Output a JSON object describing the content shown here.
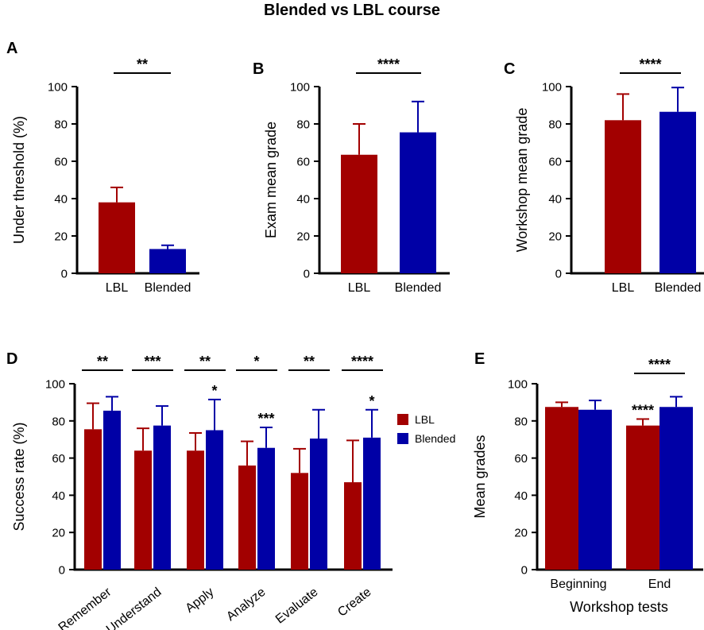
{
  "figure_title": "Blended vs LBL course",
  "colors": {
    "lbl": "#A20000",
    "blended": "#0000A6",
    "axis": "#000000"
  },
  "chart_data": [
    {
      "panel": "A",
      "type": "bar",
      "categories": [
        "LBL",
        "Blended"
      ],
      "values": [
        38,
        13
      ],
      "errors": [
        8,
        2
      ],
      "ylabel": "Under threshold (%)",
      "xlabel": "",
      "ylim": [
        0,
        100
      ],
      "yticks": [
        0,
        20,
        40,
        60,
        80,
        100
      ],
      "significance": [
        {
          "label": "**",
          "from": 0,
          "to": 1
        }
      ]
    },
    {
      "panel": "B",
      "type": "bar",
      "categories": [
        "LBL",
        "Blended"
      ],
      "values": [
        63.5,
        75.5
      ],
      "errors": [
        16.5,
        16.5
      ],
      "ylabel": "Exam mean grade",
      "xlabel": "",
      "ylim": [
        0,
        100
      ],
      "yticks": [
        0,
        20,
        40,
        60,
        80,
        100
      ],
      "significance": [
        {
          "label": "****",
          "from": 0,
          "to": 1
        }
      ]
    },
    {
      "panel": "C",
      "type": "bar",
      "categories": [
        "LBL",
        "Blended"
      ],
      "values": [
        82,
        86.5
      ],
      "errors": [
        14,
        13
      ],
      "ylabel": "Workshop mean grade",
      "xlabel": "",
      "ylim": [
        0,
        100
      ],
      "yticks": [
        0,
        20,
        40,
        60,
        80,
        100
      ],
      "significance": [
        {
          "label": "****",
          "from": 0,
          "to": 1
        }
      ]
    },
    {
      "panel": "D",
      "type": "bar",
      "categories": [
        "Remember",
        "Understand",
        "Apply",
        "Analyze",
        "Evaluate",
        "Create"
      ],
      "series": [
        {
          "name": "LBL",
          "values": [
            75.5,
            64,
            64,
            56,
            52,
            47
          ],
          "errors": [
            14,
            12,
            9.5,
            13,
            13,
            22.5
          ]
        },
        {
          "name": "Blended",
          "values": [
            85.5,
            77.5,
            75,
            65.5,
            70.5,
            71
          ],
          "errors": [
            7.5,
            10.5,
            16.5,
            11,
            15.5,
            15
          ]
        }
      ],
      "ylabel": "Success rate (%)",
      "xlabel": "",
      "ylim": [
        0,
        100
      ],
      "yticks": [
        0,
        20,
        40,
        60,
        80,
        100
      ],
      "legend": [
        "LBL",
        "Blended"
      ],
      "legend_position": "right",
      "significance": [
        {
          "label": "**",
          "category": 0
        },
        {
          "label": "***",
          "category": 1
        },
        {
          "label": "**",
          "category": 2
        },
        {
          "label": "*",
          "category": 3
        },
        {
          "label": "**",
          "category": 4
        },
        {
          "label": "****",
          "category": 5
        }
      ],
      "bar_annotations": [
        {
          "label": "*",
          "category": 2,
          "series": 1
        },
        {
          "label": "***",
          "category": 3,
          "series": 1
        },
        {
          "label": "*",
          "category": 5,
          "series": 1
        }
      ]
    },
    {
      "panel": "E",
      "type": "bar",
      "categories": [
        "Beginning",
        "End"
      ],
      "series": [
        {
          "name": "LBL",
          "values": [
            87.5,
            77.5
          ],
          "errors": [
            2.5,
            3.5
          ]
        },
        {
          "name": "Blended",
          "values": [
            86,
            87.5
          ],
          "errors": [
            5,
            5.5
          ]
        }
      ],
      "ylabel": "Mean grades",
      "xlabel": "Workshop tests",
      "ylim": [
        0,
        100
      ],
      "yticks": [
        0,
        20,
        40,
        60,
        80,
        100
      ],
      "significance": [
        {
          "label": "****",
          "category": 1
        }
      ],
      "bar_annotations": [
        {
          "label": "****",
          "category": 1,
          "series": 0
        }
      ]
    }
  ]
}
